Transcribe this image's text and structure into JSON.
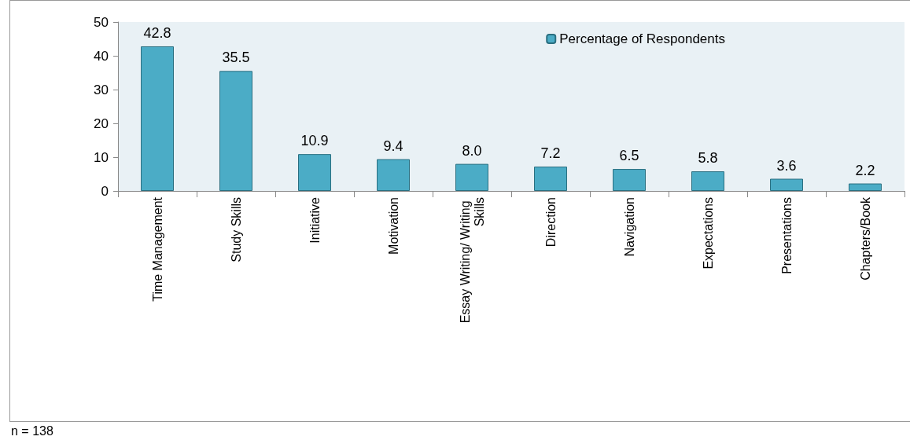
{
  "chart_data": {
    "type": "bar",
    "categories": [
      "Time Management",
      "Study Skills",
      "Initiative",
      "Motivation",
      "Essay Writing/ Writing Skills",
      "Direction",
      "Navigation",
      "Expectations",
      "Presentations",
      "Chapters/Book"
    ],
    "series": [
      {
        "name": "Percentage of Respondents",
        "color": "#4bacc6",
        "values": [
          42.8,
          35.5,
          10.9,
          9.4,
          8.0,
          7.2,
          6.5,
          5.8,
          3.6,
          2.2
        ]
      }
    ],
    "value_labels": [
      "42.8",
      "35.5",
      "10.9",
      "9.4",
      "8.0",
      "7.2",
      "6.5",
      "5.8",
      "3.6",
      "2.2"
    ],
    "ylim": [
      0,
      50
    ],
    "yticks": [
      0,
      10,
      20,
      30,
      40,
      50
    ],
    "grid": false,
    "legend": "top right",
    "annotations": [
      "n = 138"
    ]
  }
}
